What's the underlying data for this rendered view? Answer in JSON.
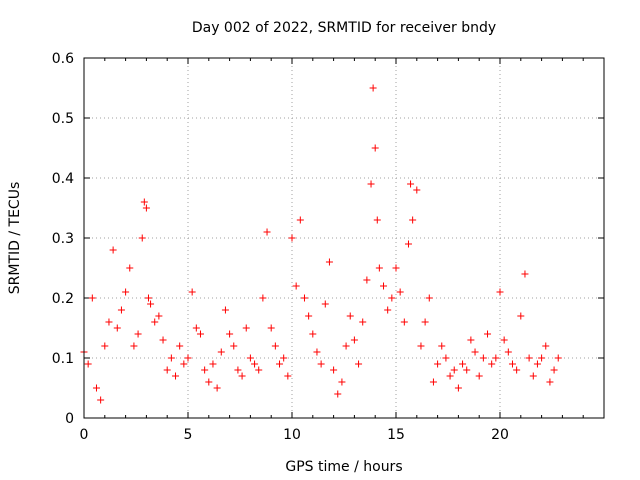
{
  "chart_data": {
    "type": "scatter",
    "title": "Day 002 of 2022, SRMTID for receiver bndy",
    "xlabel": "GPS time / hours",
    "ylabel": "SRMTID / TECUs",
    "xlim": [
      0,
      25
    ],
    "ylim": [
      0,
      0.6
    ],
    "x_ticks": [
      0,
      5,
      10,
      15,
      20
    ],
    "x_tick_labels": [
      "0",
      "5",
      "10",
      "15",
      "20"
    ],
    "y_ticks": [
      0,
      0.1,
      0.2,
      0.3,
      0.4,
      0.5,
      0.6
    ],
    "y_tick_labels": [
      "0",
      "0.1",
      "0.2",
      "0.3",
      "0.4",
      "0.5",
      "0.6"
    ],
    "grid": true,
    "marker": "plus",
    "color": "#ff0000",
    "series": [
      {
        "name": "SRMTID",
        "x": [
          0.0,
          0.2,
          0.4,
          0.6,
          0.8,
          1.0,
          1.2,
          1.4,
          1.6,
          1.8,
          2.0,
          2.2,
          2.4,
          2.6,
          2.8,
          2.9,
          3.0,
          3.1,
          3.2,
          3.4,
          3.6,
          3.8,
          4.0,
          4.2,
          4.4,
          4.6,
          4.8,
          5.0,
          5.2,
          5.4,
          5.6,
          5.8,
          6.0,
          6.2,
          6.4,
          6.6,
          6.8,
          7.0,
          7.2,
          7.4,
          7.6,
          7.8,
          8.0,
          8.2,
          8.4,
          8.6,
          8.8,
          9.0,
          9.2,
          9.4,
          9.6,
          9.8,
          10.0,
          10.2,
          10.4,
          10.6,
          10.8,
          11.0,
          11.2,
          11.4,
          11.6,
          11.8,
          12.0,
          12.2,
          12.4,
          12.6,
          12.8,
          13.0,
          13.2,
          13.4,
          13.6,
          13.8,
          13.9,
          14.0,
          14.1,
          14.2,
          14.4,
          14.6,
          14.8,
          15.0,
          15.2,
          15.4,
          15.6,
          15.7,
          15.8,
          16.0,
          16.2,
          16.4,
          16.6,
          16.8,
          17.0,
          17.2,
          17.4,
          17.6,
          17.8,
          18.0,
          18.2,
          18.4,
          18.6,
          18.8,
          19.0,
          19.2,
          19.4,
          19.6,
          19.8,
          20.0,
          20.2,
          20.4,
          20.6,
          20.8,
          21.0,
          21.2,
          21.4,
          21.6,
          21.8,
          22.0,
          22.2,
          22.4,
          22.6,
          22.8
        ],
        "y": [
          0.11,
          0.09,
          0.2,
          0.05,
          0.03,
          0.12,
          0.16,
          0.28,
          0.15,
          0.18,
          0.21,
          0.25,
          0.12,
          0.14,
          0.3,
          0.36,
          0.35,
          0.2,
          0.19,
          0.16,
          0.17,
          0.13,
          0.08,
          0.1,
          0.07,
          0.12,
          0.09,
          0.1,
          0.21,
          0.15,
          0.14,
          0.08,
          0.06,
          0.09,
          0.05,
          0.11,
          0.18,
          0.14,
          0.12,
          0.08,
          0.07,
          0.15,
          0.1,
          0.09,
          0.08,
          0.2,
          0.31,
          0.15,
          0.12,
          0.09,
          0.1,
          0.07,
          0.3,
          0.22,
          0.33,
          0.2,
          0.17,
          0.14,
          0.11,
          0.09,
          0.19,
          0.26,
          0.08,
          0.04,
          0.06,
          0.12,
          0.17,
          0.13,
          0.09,
          0.16,
          0.23,
          0.39,
          0.55,
          0.45,
          0.33,
          0.25,
          0.22,
          0.18,
          0.2,
          0.25,
          0.21,
          0.16,
          0.29,
          0.39,
          0.33,
          0.38,
          0.12,
          0.16,
          0.2,
          0.06,
          0.09,
          0.12,
          0.1,
          0.07,
          0.08,
          0.05,
          0.09,
          0.08,
          0.13,
          0.11,
          0.07,
          0.1,
          0.14,
          0.09,
          0.1,
          0.21,
          0.13,
          0.11,
          0.09,
          0.08,
          0.17,
          0.24,
          0.1,
          0.07,
          0.09,
          0.1,
          0.12,
          0.06,
          0.08,
          0.1
        ]
      }
    ]
  }
}
